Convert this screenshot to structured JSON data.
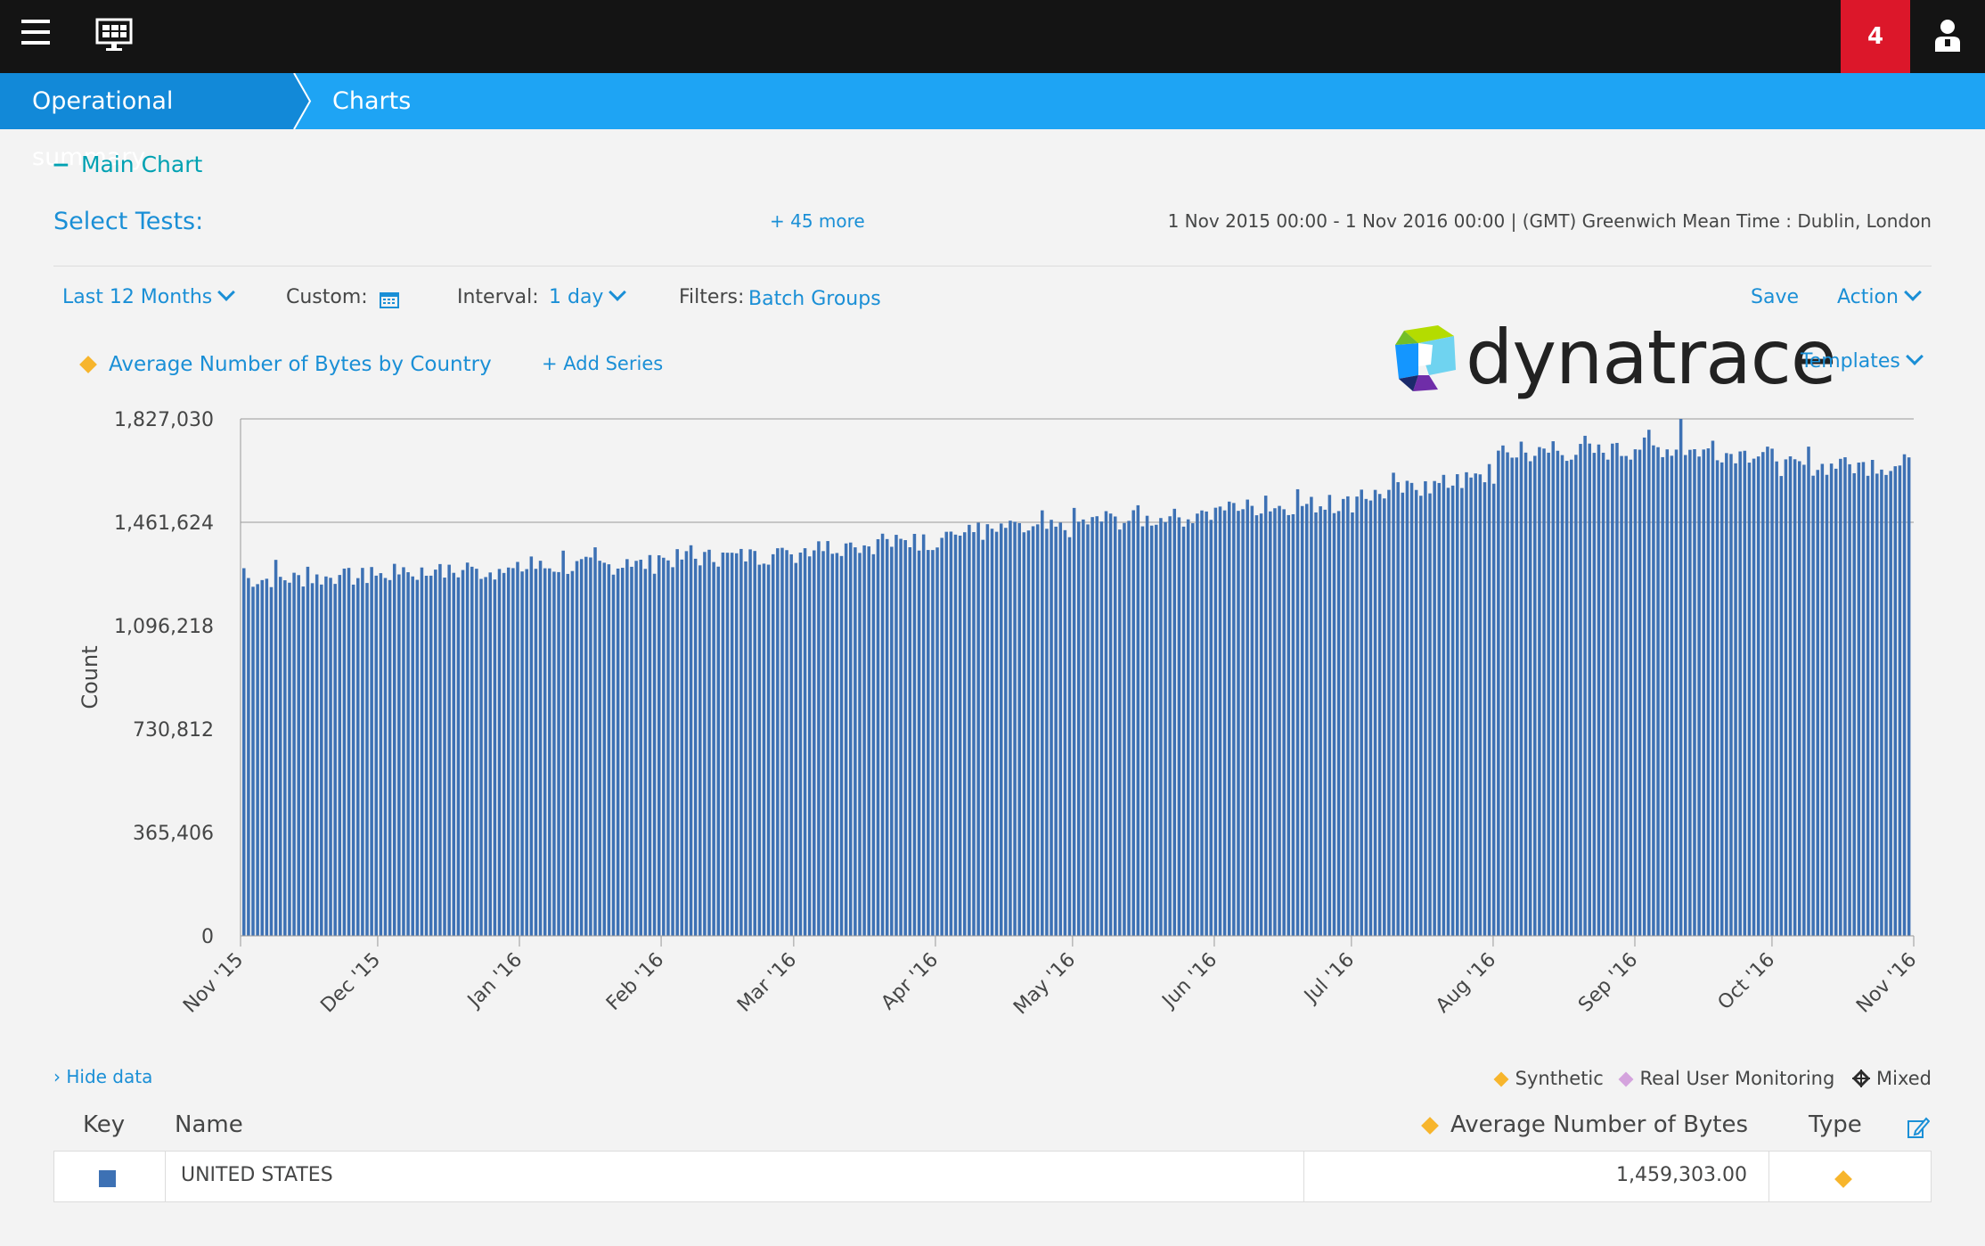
{
  "topbar": {
    "menu_icon": "hamburger-icon",
    "dashboard_icon": "dashboard-icon",
    "notification_count": "4",
    "user_icon": "user-icon"
  },
  "breadcrumb": {
    "items": [
      "Operational summary",
      "Charts"
    ]
  },
  "panel": {
    "toggle": "−",
    "title": "Main Chart",
    "select_tests_label": "Select Tests:",
    "more_tests": "+ 45 more",
    "date_range": "1 Nov 2015 00:00 - 1 Nov 2016 00:00  | (GMT) Greenwich Mean Time : Dublin, London"
  },
  "controls": {
    "period": "Last 12 Months",
    "custom_label": "Custom:",
    "interval_label": "Interval:",
    "interval_value": "1 day",
    "filters_label": "Filters:",
    "filters_value": "Batch Groups",
    "save": "Save",
    "action": "Action",
    "templates": "Templates"
  },
  "series": {
    "label": "Average Number of Bytes by Country",
    "add": "+ Add Series"
  },
  "logo_text": "dynatrace",
  "colors": {
    "accent": "#1ea4f4",
    "bar": "#3d71b4",
    "synthetic": "#f7b52c",
    "rum": "#d4a3dd",
    "alert": "#dc172a"
  },
  "chart_data": {
    "type": "bar",
    "ylabel": "Count",
    "ylim": [
      0,
      1827030
    ],
    "yticks": [
      "0",
      "365,406",
      "730,812",
      "1,096,218",
      "1,461,624",
      "1,827,030"
    ],
    "x_tick_labels": [
      "Nov '15",
      "Dec '15",
      "Jan '16",
      "Feb '16",
      "Mar '16",
      "Apr '16",
      "May '16",
      "Jun '16",
      "Jul '16",
      "Aug '16",
      "Sep '16",
      "Oct '16",
      "Nov '16"
    ],
    "series": [
      {
        "name": "UNITED STATES",
        "monthly_values": [
          1260000,
          1280000,
          1300000,
          1330000,
          1370000,
          1420000,
          1460000,
          1510000,
          1550000,
          1700000,
          1730000,
          1660000
        ],
        "peak": 1827030
      }
    ],
    "grid": "horizontal lines at 1,461,624 and 1,827,030"
  },
  "data_table": {
    "hide_data": "› Hide data",
    "legend": [
      "Synthetic",
      "Real User Monitoring",
      "Mixed"
    ],
    "headers": {
      "key": "Key",
      "name": "Name",
      "value": "Average Number of Bytes",
      "type": "Type"
    },
    "rows": [
      {
        "name": "UNITED STATES",
        "value": "1,459,303.00"
      }
    ]
  }
}
